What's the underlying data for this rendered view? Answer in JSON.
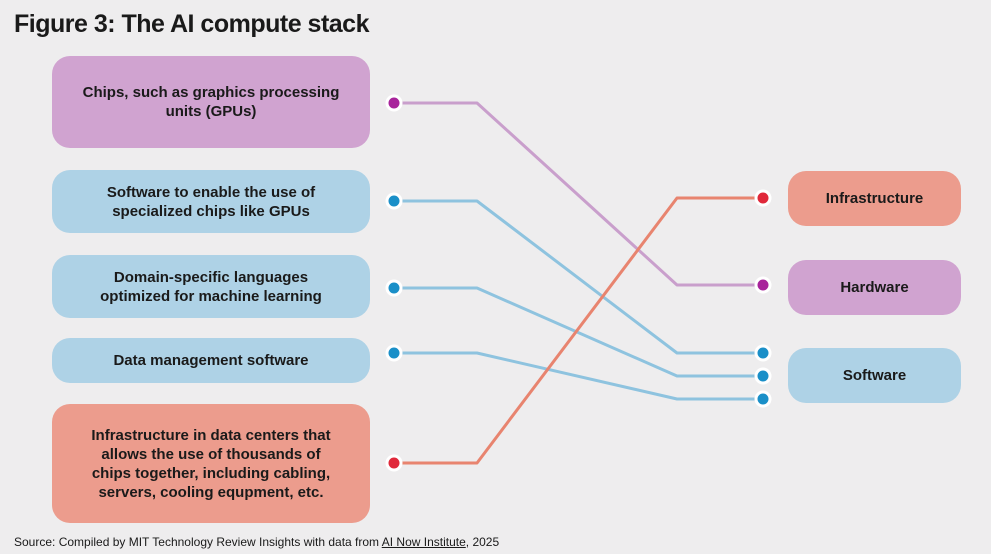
{
  "title": "Figure 3: The AI compute stack",
  "left_items": [
    {
      "label": "Chips, such as graphics processing units (GPUs)",
      "color": "#d0a3d0"
    },
    {
      "label": "Software to enable the use of specialized chips like GPUs",
      "color": "#aed2e6"
    },
    {
      "label": "Domain-specific languages optimized for machine learning",
      "color": "#aed2e6"
    },
    {
      "label": "Data management software",
      "color": "#aed2e6"
    },
    {
      "label": "Infrastructure in data centers that allows the use of thousands of chips together, including cabling, servers, cooling equpment, etc.",
      "color": "#ec9c8d"
    }
  ],
  "right_items": [
    {
      "label": "Infrastructure",
      "color": "#ec9c8d"
    },
    {
      "label": "Hardware",
      "color": "#d0a3d0"
    },
    {
      "label": "Software",
      "color": "#aed2e6"
    }
  ],
  "colors": {
    "purple_line": "#c99fcc",
    "purple_dot": "#a8239b",
    "blue_line": "#8ec3df",
    "blue_dot": "#1a8fc8",
    "red_line": "#e8846f",
    "red_dot": "#e0283a"
  },
  "source": {
    "prefix": "Source: Compiled by MIT Technology Review Insights with data from ",
    "link": "AI Now Institute",
    "suffix": ", 2025"
  }
}
